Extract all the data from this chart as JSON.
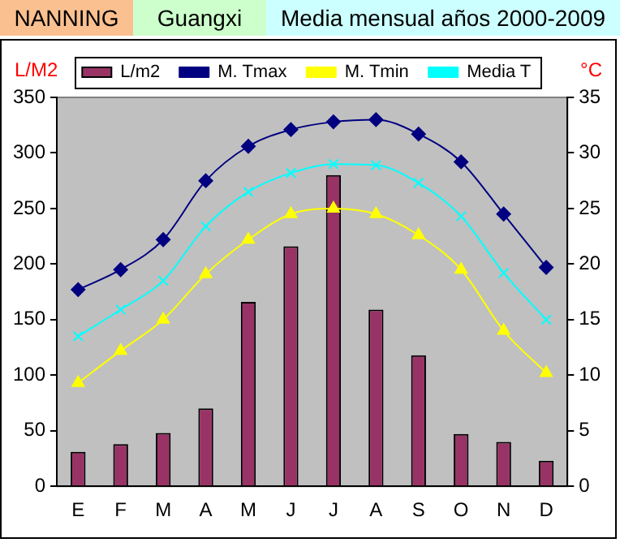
{
  "chart_data": {
    "type": "bar",
    "title": "NANNING",
    "subtitle": "Guangxi",
    "annotations": [
      "Media mensual años 2000-2009"
    ],
    "ylabel": "L/M2",
    "y2label": "°C",
    "categories": [
      "E",
      "F",
      "M",
      "A",
      "M",
      "J",
      "J",
      "A",
      "S",
      "O",
      "N",
      "D"
    ],
    "series": [
      {
        "name": "L/m2",
        "color": "#993366",
        "values": [
          31,
          38,
          48,
          70,
          166,
          216,
          280,
          159,
          118,
          47,
          40,
          23
        ]
      },
      {
        "name": "M. Tmax",
        "type": "line",
        "axis": "y2",
        "marker": "diamond",
        "color": "#000080",
        "values": [
          17.7,
          19.5,
          22.2,
          27.5,
          30.6,
          32.1,
          32.8,
          33.0,
          31.7,
          29.2,
          24.5,
          19.7
        ]
      },
      {
        "name": "M. Tmin",
        "type": "line",
        "axis": "y2",
        "marker": "triangle",
        "color": "#ffff00",
        "values": [
          9.3,
          12.2,
          15.0,
          19.1,
          22.2,
          24.5,
          25.0,
          24.5,
          22.6,
          19.5,
          14.0,
          10.2
        ]
      },
      {
        "name": "Media T",
        "type": "line",
        "axis": "y2",
        "marker": "cross",
        "color": "#00ffff",
        "values": [
          13.5,
          15.9,
          18.5,
          23.4,
          26.5,
          28.2,
          29.0,
          28.9,
          27.3,
          24.3,
          19.2,
          15.0
        ]
      }
    ],
    "ylim": [
      0,
      350
    ],
    "yticks": [
      0,
      50,
      100,
      150,
      200,
      250,
      300,
      350
    ],
    "y2lim": [
      0,
      35
    ],
    "y2ticks": [
      0,
      5,
      10,
      15,
      20,
      25,
      30,
      35
    ],
    "legend": "top",
    "grid": false
  }
}
